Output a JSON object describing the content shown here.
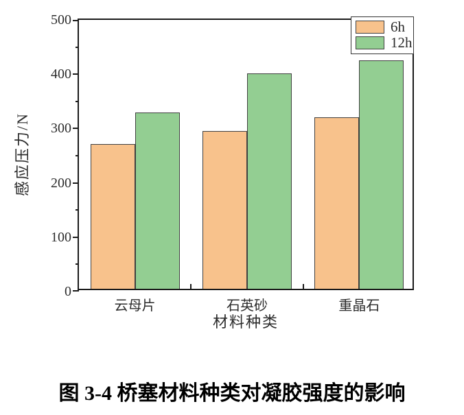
{
  "figure": {
    "caption": "图 3-4  桥塞材料种类对凝胶强度的影响"
  },
  "chart_data": {
    "type": "bar",
    "title": "",
    "categories": [
      "云母片",
      "石英砂",
      "重晶石"
    ],
    "series": [
      {
        "name": "6h",
        "color": "#F8C28C",
        "values": [
          267,
          291,
          316
        ]
      },
      {
        "name": "12h",
        "color": "#93CE92",
        "values": [
          325,
          396,
          421
        ]
      }
    ],
    "xlabel": "材料种类",
    "ylabel": "感应压力/N",
    "ylim": [
      0,
      500
    ],
    "yticks": [
      0,
      100,
      200,
      300,
      400,
      500
    ],
    "y_minor_step": 50,
    "bar_edge_color": "#404040",
    "legend_position": "top-right",
    "grid": false
  }
}
